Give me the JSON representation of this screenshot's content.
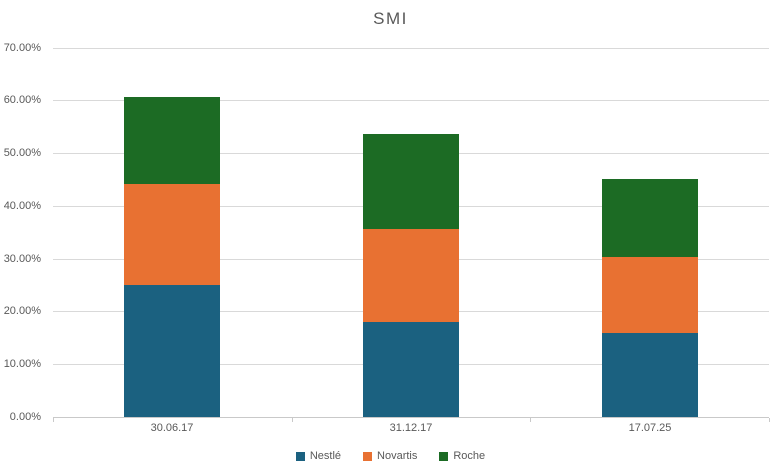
{
  "chart": {
    "title": "SMI"
  },
  "chart_data": {
    "type": "bar",
    "stacked": true,
    "title": "SMI",
    "xlabel": "",
    "ylabel": "",
    "categories": [
      "30.06.17",
      "31.12.17",
      "17.07.25"
    ],
    "series": [
      {
        "name": "Nestlé",
        "color": "#1b6180",
        "values": [
          25.0,
          18.0,
          16.0
        ]
      },
      {
        "name": "Novartis",
        "color": "#e87132",
        "values": [
          19.2,
          17.7,
          14.4
        ]
      },
      {
        "name": "Roche",
        "color": "#1c6b24",
        "values": [
          16.5,
          18.0,
          14.6
        ]
      }
    ],
    "stack_totals": [
      60.7,
      53.7,
      45.0
    ],
    "ylim": [
      0,
      70
    ],
    "ytick_step": 10,
    "ytick_labels": [
      "0.00%",
      "10.00%",
      "20.00%",
      "30.00%",
      "40.00%",
      "50.00%",
      "60.00%",
      "70.00%"
    ],
    "grid": true,
    "legend_position": "bottom",
    "colors": {
      "text": "#595959",
      "gridline": "#d9d9d9",
      "axis": "#c9c9c9",
      "background": "#ffffff"
    }
  }
}
